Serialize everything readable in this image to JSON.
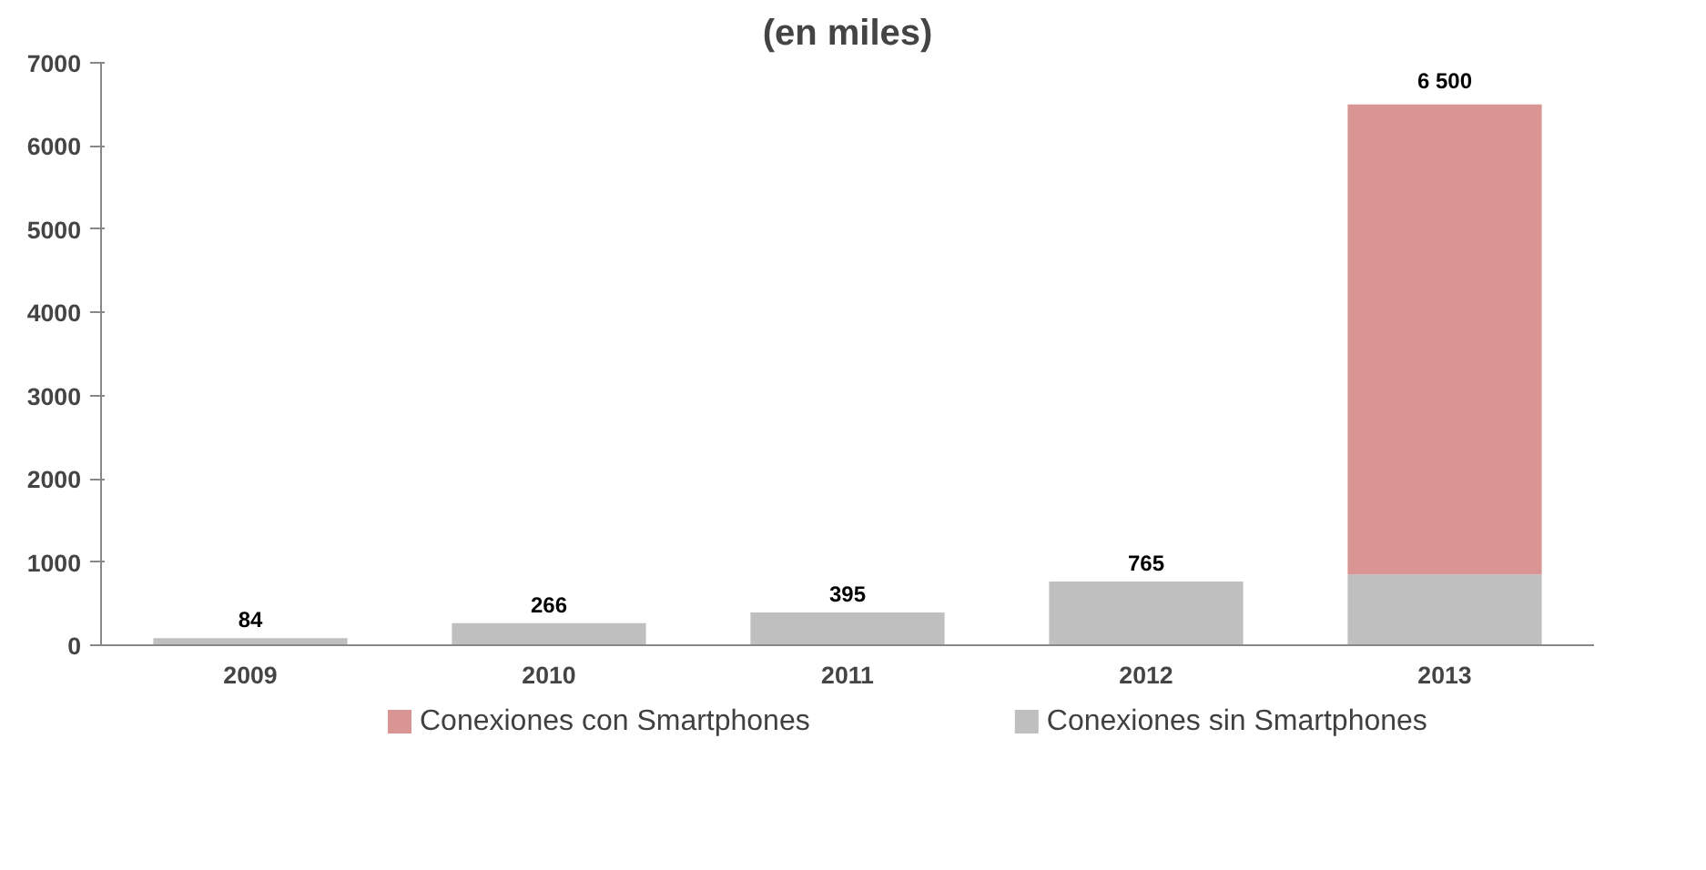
{
  "chart_data": {
    "type": "bar",
    "title": "(en miles)",
    "stacked": true,
    "categories": [
      "2009",
      "2010",
      "2011",
      "2012",
      "2013"
    ],
    "series": [
      {
        "name": "Conexiones sin Smartphones",
        "color": "#bfbfbf",
        "values": [
          84,
          266,
          395,
          765,
          850
        ]
      },
      {
        "name": "Conexiones con Smartphones",
        "color": "#d99594",
        "values": [
          null,
          null,
          null,
          null,
          5650
        ]
      }
    ],
    "totals": [
      "84",
      "266",
      "395",
      "765",
      "6 500"
    ],
    "ylim": [
      0,
      7000
    ],
    "yticks": [
      0,
      1000,
      2000,
      3000,
      4000,
      5000,
      6000,
      7000
    ],
    "grid": false,
    "legend": "bottom"
  }
}
